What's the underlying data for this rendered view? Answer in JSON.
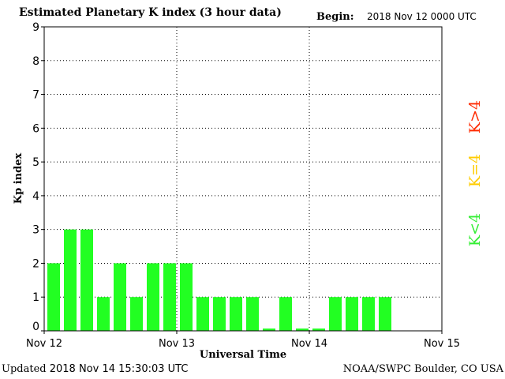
{
  "header": {
    "title": "Estimated Planetary K index (3 hour data)",
    "begin_label": "Begin:",
    "begin_value": "2018 Nov 12 0000 UTC"
  },
  "footer": {
    "updated_label": "Updated",
    "updated_value": "2018 Nov 14 15:30:03 UTC",
    "credit": "NOAA/SWPC Boulder, CO USA"
  },
  "legend": [
    {
      "label": "K>4",
      "color": "#ff2a00"
    },
    {
      "label": "K=4",
      "color": "#ffcc00"
    },
    {
      "label": "K<4",
      "color": "#33ee33"
    }
  ],
  "chart_data": {
    "type": "bar",
    "title": "Estimated Planetary K index (3 hour data)",
    "xlabel": "Universal Time",
    "ylabel": "Kp index",
    "ylim": [
      0,
      9
    ],
    "yticks": [
      0,
      1,
      2,
      3,
      4,
      5,
      6,
      7,
      8,
      9
    ],
    "xticks": [
      "Nov 12",
      "Nov 13",
      "Nov 14",
      "Nov 15"
    ],
    "x_unit": "3-hour intervals from 2018 Nov 12 00:00 UTC",
    "grid": true,
    "bar_color": "#22ff22",
    "values": [
      2,
      3,
      3,
      1,
      2,
      1,
      2,
      2,
      2,
      1,
      1,
      1,
      1,
      0.067,
      1,
      0.067,
      0.067,
      1,
      1,
      1,
      1
    ]
  }
}
